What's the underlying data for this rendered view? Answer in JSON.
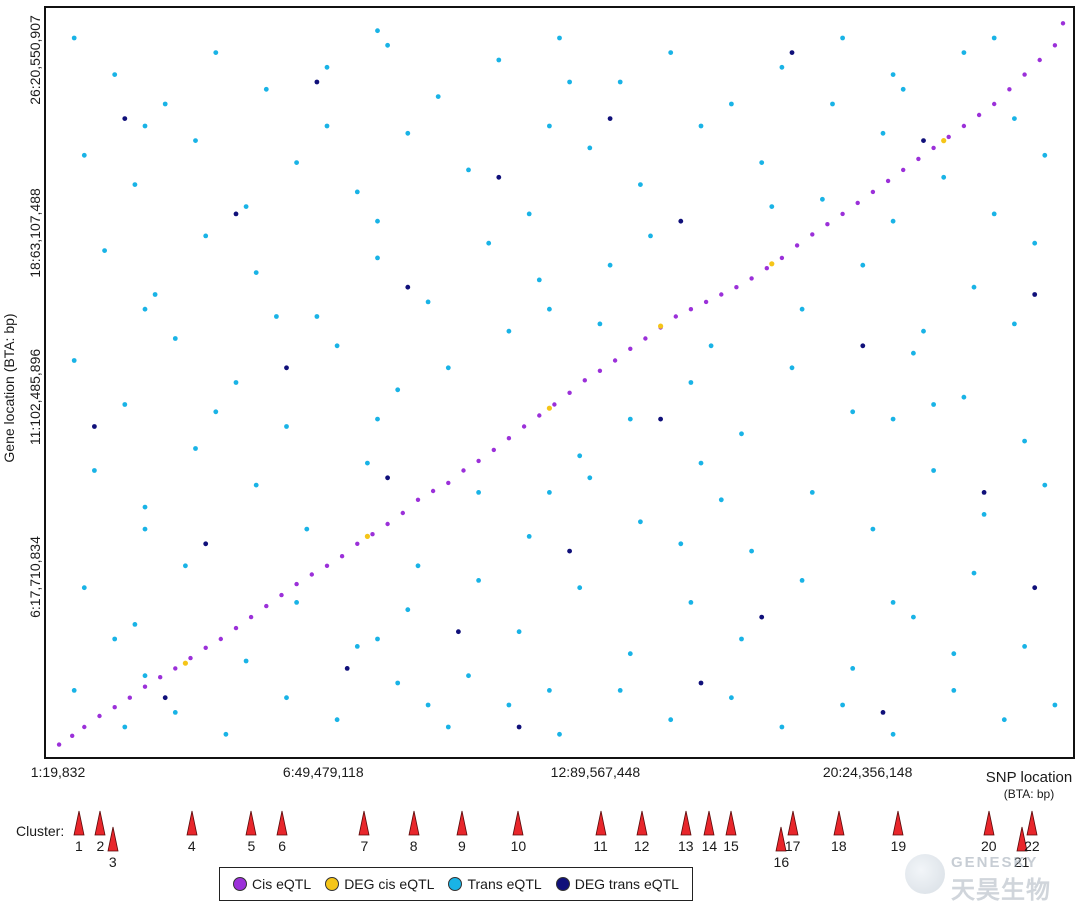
{
  "chart_data": {
    "type": "scatter",
    "title": "",
    "xlabel": "SNP location",
    "xlabel_unit": "(BTA: bp)",
    "ylabel": "Gene location  (BTA: bp)",
    "x_ticks": [
      {
        "label": "1:19,832",
        "frac": 0.0
      },
      {
        "label": "6:49,479,118",
        "frac": 0.27
      },
      {
        "label": "12:89,567,448",
        "frac": 0.535
      },
      {
        "label": "20:24,356,148",
        "frac": 0.8
      }
    ],
    "y_ticks": [
      {
        "label": "6:17,710,834",
        "frac": 0.24
      },
      {
        "label": "11:102,485,896",
        "frac": 0.48
      },
      {
        "label": "18:63,107,488",
        "frac": 0.7
      },
      {
        "label": "26:20,550,907",
        "frac": 0.93
      }
    ],
    "xlim": [
      0,
      1
    ],
    "ylim": [
      0,
      1
    ],
    "grid": false,
    "legend": "bottom",
    "series": [
      {
        "name": "Cis eQTL",
        "color": "#9b30d9",
        "points": [
          [
            0.005,
            0.006
          ],
          [
            0.018,
            0.018
          ],
          [
            0.03,
            0.03
          ],
          [
            0.045,
            0.045
          ],
          [
            0.06,
            0.057
          ],
          [
            0.075,
            0.07
          ],
          [
            0.09,
            0.085
          ],
          [
            0.105,
            0.098
          ],
          [
            0.12,
            0.11
          ],
          [
            0.135,
            0.124
          ],
          [
            0.15,
            0.138
          ],
          [
            0.165,
            0.15
          ],
          [
            0.18,
            0.165
          ],
          [
            0.195,
            0.18
          ],
          [
            0.21,
            0.195
          ],
          [
            0.225,
            0.21
          ],
          [
            0.24,
            0.225
          ],
          [
            0.255,
            0.238
          ],
          [
            0.27,
            0.25
          ],
          [
            0.285,
            0.263
          ],
          [
            0.3,
            0.28
          ],
          [
            0.315,
            0.293
          ],
          [
            0.33,
            0.307
          ],
          [
            0.345,
            0.322
          ],
          [
            0.36,
            0.34
          ],
          [
            0.375,
            0.352
          ],
          [
            0.39,
            0.363
          ],
          [
            0.405,
            0.38
          ],
          [
            0.42,
            0.393
          ],
          [
            0.435,
            0.408
          ],
          [
            0.45,
            0.424
          ],
          [
            0.465,
            0.44
          ],
          [
            0.48,
            0.455
          ],
          [
            0.495,
            0.47
          ],
          [
            0.51,
            0.486
          ],
          [
            0.525,
            0.503
          ],
          [
            0.54,
            0.516
          ],
          [
            0.555,
            0.53
          ],
          [
            0.57,
            0.546
          ],
          [
            0.585,
            0.56
          ],
          [
            0.6,
            0.575
          ],
          [
            0.615,
            0.59
          ],
          [
            0.63,
            0.6
          ],
          [
            0.645,
            0.61
          ],
          [
            0.66,
            0.62
          ],
          [
            0.675,
            0.63
          ],
          [
            0.69,
            0.642
          ],
          [
            0.705,
            0.656
          ],
          [
            0.72,
            0.67
          ],
          [
            0.735,
            0.687
          ],
          [
            0.75,
            0.702
          ],
          [
            0.765,
            0.716
          ],
          [
            0.78,
            0.73
          ],
          [
            0.795,
            0.745
          ],
          [
            0.81,
            0.76
          ],
          [
            0.825,
            0.775
          ],
          [
            0.84,
            0.79
          ],
          [
            0.855,
            0.805
          ],
          [
            0.87,
            0.82
          ],
          [
            0.885,
            0.835
          ],
          [
            0.9,
            0.85
          ],
          [
            0.915,
            0.865
          ],
          [
            0.93,
            0.88
          ],
          [
            0.945,
            0.9
          ],
          [
            0.96,
            0.92
          ],
          [
            0.975,
            0.94
          ],
          [
            0.99,
            0.96
          ],
          [
            0.998,
            0.99
          ]
        ]
      },
      {
        "name": "DEG cis eQTL",
        "color": "#f5c518",
        "points": [
          [
            0.13,
            0.117
          ],
          [
            0.31,
            0.29
          ],
          [
            0.49,
            0.465
          ],
          [
            0.6,
            0.577
          ],
          [
            0.71,
            0.662
          ],
          [
            0.88,
            0.83
          ]
        ]
      },
      {
        "name": "Trans eQTL",
        "color": "#19b3e6",
        "points": [
          [
            0.02,
            0.97
          ],
          [
            0.06,
            0.92
          ],
          [
            0.11,
            0.88
          ],
          [
            0.16,
            0.95
          ],
          [
            0.21,
            0.9
          ],
          [
            0.27,
            0.93
          ],
          [
            0.33,
            0.96
          ],
          [
            0.38,
            0.89
          ],
          [
            0.44,
            0.94
          ],
          [
            0.5,
            0.97
          ],
          [
            0.56,
            0.91
          ],
          [
            0.61,
            0.95
          ],
          [
            0.67,
            0.88
          ],
          [
            0.72,
            0.93
          ],
          [
            0.78,
            0.97
          ],
          [
            0.84,
            0.9
          ],
          [
            0.9,
            0.95
          ],
          [
            0.95,
            0.86
          ],
          [
            0.03,
            0.81
          ],
          [
            0.08,
            0.77
          ],
          [
            0.14,
            0.83
          ],
          [
            0.19,
            0.74
          ],
          [
            0.24,
            0.8
          ],
          [
            0.3,
            0.76
          ],
          [
            0.35,
            0.84
          ],
          [
            0.41,
            0.79
          ],
          [
            0.47,
            0.73
          ],
          [
            0.53,
            0.82
          ],
          [
            0.58,
            0.77
          ],
          [
            0.64,
            0.85
          ],
          [
            0.7,
            0.8
          ],
          [
            0.76,
            0.75
          ],
          [
            0.82,
            0.84
          ],
          [
            0.88,
            0.78
          ],
          [
            0.93,
            0.73
          ],
          [
            0.98,
            0.81
          ],
          [
            0.05,
            0.68
          ],
          [
            0.1,
            0.62
          ],
          [
            0.15,
            0.7
          ],
          [
            0.2,
            0.65
          ],
          [
            0.26,
            0.59
          ],
          [
            0.32,
            0.67
          ],
          [
            0.37,
            0.61
          ],
          [
            0.43,
            0.69
          ],
          [
            0.48,
            0.64
          ],
          [
            0.54,
            0.58
          ],
          [
            0.59,
            0.7
          ],
          [
            0.65,
            0.55
          ],
          [
            0.74,
            0.6
          ],
          [
            0.8,
            0.66
          ],
          [
            0.86,
            0.57
          ],
          [
            0.91,
            0.63
          ],
          [
            0.97,
            0.69
          ],
          [
            0.02,
            0.53
          ],
          [
            0.07,
            0.47
          ],
          [
            0.12,
            0.56
          ],
          [
            0.18,
            0.5
          ],
          [
            0.23,
            0.44
          ],
          [
            0.28,
            0.55
          ],
          [
            0.34,
            0.49
          ],
          [
            0.39,
            0.52
          ],
          [
            0.45,
            0.57
          ],
          [
            0.52,
            0.4
          ],
          [
            0.57,
            0.45
          ],
          [
            0.63,
            0.5
          ],
          [
            0.68,
            0.43
          ],
          [
            0.73,
            0.52
          ],
          [
            0.79,
            0.46
          ],
          [
            0.85,
            0.54
          ],
          [
            0.9,
            0.48
          ],
          [
            0.96,
            0.42
          ],
          [
            0.04,
            0.38
          ],
          [
            0.09,
            0.33
          ],
          [
            0.14,
            0.41
          ],
          [
            0.2,
            0.36
          ],
          [
            0.25,
            0.3
          ],
          [
            0.31,
            0.39
          ],
          [
            0.36,
            0.25
          ],
          [
            0.42,
            0.35
          ],
          [
            0.47,
            0.29
          ],
          [
            0.53,
            0.37
          ],
          [
            0.58,
            0.31
          ],
          [
            0.64,
            0.39
          ],
          [
            0.69,
            0.27
          ],
          [
            0.75,
            0.35
          ],
          [
            0.81,
            0.3
          ],
          [
            0.87,
            0.38
          ],
          [
            0.92,
            0.32
          ],
          [
            0.98,
            0.36
          ],
          [
            0.03,
            0.22
          ],
          [
            0.08,
            0.17
          ],
          [
            0.13,
            0.25
          ],
          [
            0.19,
            0.12
          ],
          [
            0.24,
            0.2
          ],
          [
            0.3,
            0.14
          ],
          [
            0.35,
            0.19
          ],
          [
            0.41,
            0.1
          ],
          [
            0.46,
            0.16
          ],
          [
            0.52,
            0.22
          ],
          [
            0.57,
            0.13
          ],
          [
            0.63,
            0.2
          ],
          [
            0.68,
            0.15
          ],
          [
            0.74,
            0.23
          ],
          [
            0.79,
            0.11
          ],
          [
            0.85,
            0.18
          ],
          [
            0.91,
            0.24
          ],
          [
            0.96,
            0.14
          ],
          [
            0.02,
            0.08
          ],
          [
            0.07,
            0.03
          ],
          [
            0.12,
            0.05
          ],
          [
            0.17,
            0.02
          ],
          [
            0.23,
            0.07
          ],
          [
            0.28,
            0.04
          ],
          [
            0.34,
            0.09
          ],
          [
            0.39,
            0.03
          ],
          [
            0.45,
            0.06
          ],
          [
            0.5,
            0.02
          ],
          [
            0.56,
            0.08
          ],
          [
            0.61,
            0.04
          ],
          [
            0.67,
            0.07
          ],
          [
            0.72,
            0.03
          ],
          [
            0.78,
            0.06
          ],
          [
            0.83,
            0.02
          ],
          [
            0.89,
            0.08
          ],
          [
            0.94,
            0.04
          ],
          [
            0.99,
            0.06
          ],
          [
            0.09,
            0.6
          ],
          [
            0.09,
            0.3
          ],
          [
            0.09,
            0.1
          ],
          [
            0.09,
            0.85
          ],
          [
            0.32,
            0.45
          ],
          [
            0.32,
            0.15
          ],
          [
            0.32,
            0.72
          ],
          [
            0.32,
            0.98
          ],
          [
            0.49,
            0.6
          ],
          [
            0.49,
            0.35
          ],
          [
            0.49,
            0.85
          ],
          [
            0.49,
            0.08
          ],
          [
            0.83,
            0.2
          ],
          [
            0.83,
            0.45
          ],
          [
            0.83,
            0.72
          ],
          [
            0.83,
            0.92
          ],
          [
            0.16,
            0.46
          ],
          [
            0.27,
            0.85
          ],
          [
            0.42,
            0.23
          ],
          [
            0.55,
            0.66
          ],
          [
            0.66,
            0.34
          ],
          [
            0.77,
            0.88
          ],
          [
            0.89,
            0.13
          ],
          [
            0.95,
            0.58
          ],
          [
            0.06,
            0.15
          ],
          [
            0.22,
            0.59
          ],
          [
            0.37,
            0.06
          ],
          [
            0.51,
            0.91
          ],
          [
            0.62,
            0.28
          ],
          [
            0.71,
            0.74
          ],
          [
            0.87,
            0.47
          ],
          [
            0.93,
            0.97
          ]
        ]
      },
      {
        "name": "DEG trans eQTL",
        "color": "#10107a",
        "points": [
          [
            0.07,
            0.86
          ],
          [
            0.18,
            0.73
          ],
          [
            0.26,
            0.91
          ],
          [
            0.35,
            0.63
          ],
          [
            0.44,
            0.78
          ],
          [
            0.55,
            0.86
          ],
          [
            0.62,
            0.72
          ],
          [
            0.73,
            0.95
          ],
          [
            0.86,
            0.83
          ],
          [
            0.97,
            0.62
          ],
          [
            0.04,
            0.44
          ],
          [
            0.15,
            0.28
          ],
          [
            0.23,
            0.52
          ],
          [
            0.33,
            0.37
          ],
          [
            0.4,
            0.16
          ],
          [
            0.51,
            0.27
          ],
          [
            0.6,
            0.45
          ],
          [
            0.7,
            0.18
          ],
          [
            0.8,
            0.55
          ],
          [
            0.92,
            0.35
          ],
          [
            0.11,
            0.07
          ],
          [
            0.29,
            0.11
          ],
          [
            0.46,
            0.03
          ],
          [
            0.64,
            0.09
          ],
          [
            0.82,
            0.05
          ],
          [
            0.97,
            0.22
          ]
        ]
      }
    ]
  },
  "clusters": {
    "label": "Cluster:",
    "items": [
      {
        "id": "1",
        "pos": 0.032,
        "row": 0
      },
      {
        "id": "2",
        "pos": 0.053,
        "row": 0
      },
      {
        "id": "3",
        "pos": 0.065,
        "row": 1
      },
      {
        "id": "4",
        "pos": 0.142,
        "row": 0
      },
      {
        "id": "5",
        "pos": 0.2,
        "row": 0
      },
      {
        "id": "6",
        "pos": 0.23,
        "row": 0
      },
      {
        "id": "7",
        "pos": 0.31,
        "row": 0
      },
      {
        "id": "8",
        "pos": 0.358,
        "row": 0
      },
      {
        "id": "9",
        "pos": 0.405,
        "row": 0
      },
      {
        "id": "10",
        "pos": 0.46,
        "row": 0
      },
      {
        "id": "11",
        "pos": 0.54,
        "row": 0
      },
      {
        "id": "12",
        "pos": 0.58,
        "row": 0
      },
      {
        "id": "13",
        "pos": 0.623,
        "row": 0
      },
      {
        "id": "14",
        "pos": 0.646,
        "row": 0
      },
      {
        "id": "15",
        "pos": 0.667,
        "row": 0
      },
      {
        "id": "16",
        "pos": 0.716,
        "row": 1
      },
      {
        "id": "17",
        "pos": 0.727,
        "row": 0
      },
      {
        "id": "18",
        "pos": 0.772,
        "row": 0
      },
      {
        "id": "19",
        "pos": 0.83,
        "row": 0
      },
      {
        "id": "20",
        "pos": 0.918,
        "row": 0
      },
      {
        "id": "21",
        "pos": 0.95,
        "row": 1
      },
      {
        "id": "22",
        "pos": 0.96,
        "row": 0
      }
    ]
  },
  "legend": {
    "items": [
      {
        "label": "Cis eQTL",
        "color": "#9b30d9"
      },
      {
        "label": "DEG cis eQTL",
        "color": "#f5c518"
      },
      {
        "label": "Trans eQTL",
        "color": "#19b3e6"
      },
      {
        "label": "DEG trans eQTL",
        "color": "#10107a"
      }
    ]
  },
  "watermark": {
    "en": "GENESKY",
    "zh": "天昊生物"
  },
  "colors": {
    "marker": "#e8262b",
    "marker_stroke": "#5a0a0a"
  }
}
